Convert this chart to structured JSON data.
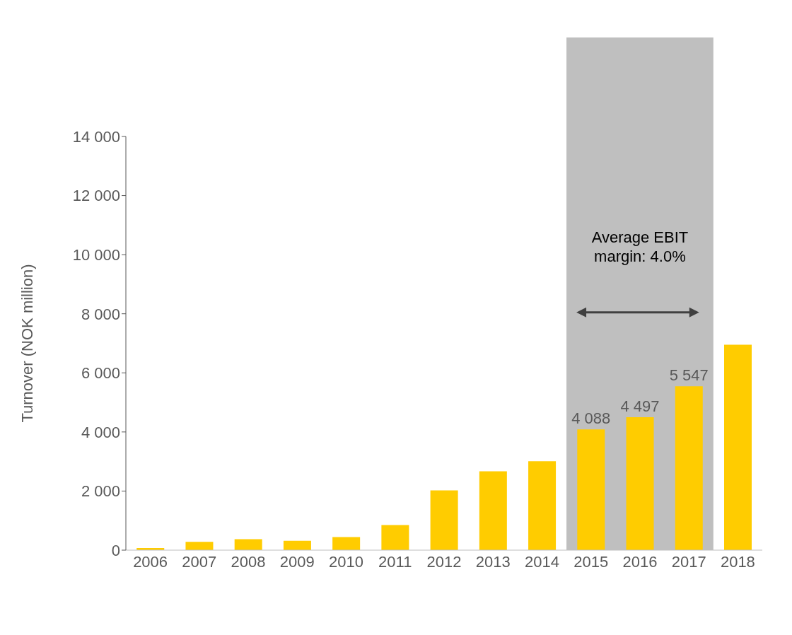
{
  "chart_data": {
    "type": "bar",
    "ylabel": "Turnover (NOK million)",
    "categories": [
      "2006",
      "2007",
      "2008",
      "2009",
      "2010",
      "2011",
      "2012",
      "2013",
      "2014",
      "2015",
      "2016",
      "2017",
      "2018"
    ],
    "values": [
      70,
      280,
      370,
      320,
      440,
      850,
      2020,
      2670,
      3010,
      4088,
      4497,
      5547,
      6950
    ],
    "value_labels": [
      null,
      null,
      null,
      null,
      null,
      null,
      null,
      null,
      null,
      "4 088",
      "4 497",
      "5 547",
      null
    ],
    "color": "#ffcc00",
    "ylim": [
      0,
      14000
    ],
    "yticks": [
      {
        "value": 0,
        "label": "0"
      },
      {
        "value": 2000,
        "label": "2 000"
      },
      {
        "value": 4000,
        "label": "4 000"
      },
      {
        "value": 6000,
        "label": "6 000"
      },
      {
        "value": 8000,
        "label": "8 000"
      },
      {
        "value": 10000,
        "label": "10 000"
      },
      {
        "value": 12000,
        "label": "12 000"
      },
      {
        "value": 14000,
        "label": "14 000"
      }
    ],
    "bands": [
      {
        "axis": "x",
        "from": "2015",
        "to": "2017",
        "label": "Average EBIT margin: 4.0%",
        "color": "#bfbfbf"
      }
    ],
    "grid": false
  }
}
